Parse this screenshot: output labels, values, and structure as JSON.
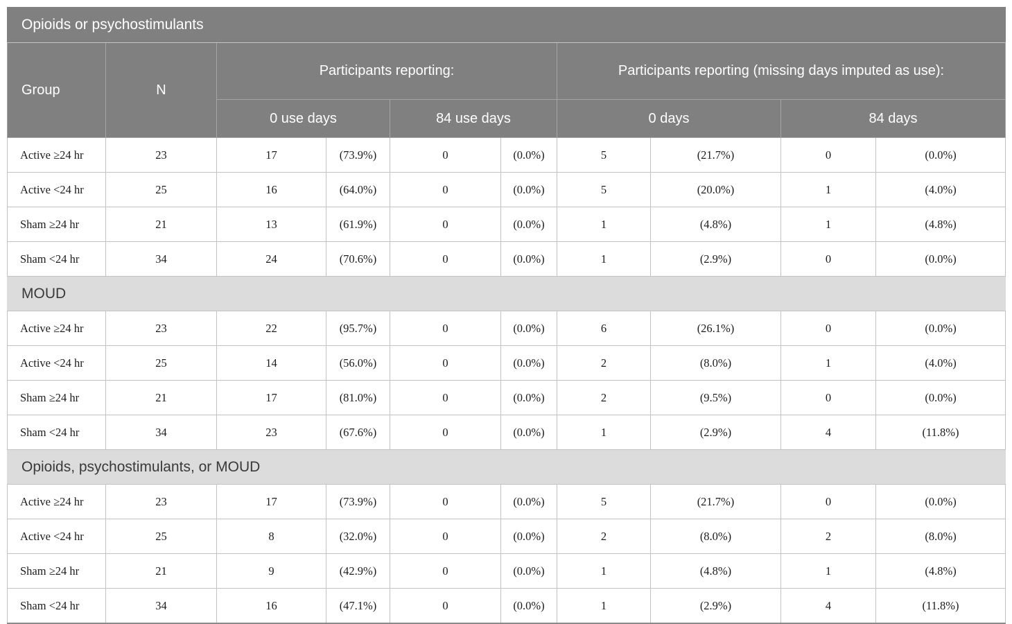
{
  "table": {
    "title": "Opioids or psychostimulants",
    "columns": {
      "group": "Group",
      "n": "N",
      "reporting": "Participants reporting:",
      "reporting_imputed": "Participants reporting (missing days imputed as use):",
      "sub": [
        "0 use days",
        "84 use days",
        "0 days",
        "84 days"
      ]
    },
    "sections": [
      {
        "label": null,
        "rows": [
          {
            "group": "Active ≥24 hr",
            "n": "23",
            "cells": [
              "17",
              "(73.9%)",
              "0",
              "(0.0%)",
              "5",
              "(21.7%)",
              "0",
              "(0.0%)"
            ]
          },
          {
            "group": "Active <24 hr",
            "n": "25",
            "cells": [
              "16",
              "(64.0%)",
              "0",
              "(0.0%)",
              "5",
              "(20.0%)",
              "1",
              "(4.0%)"
            ]
          },
          {
            "group": "Sham ≥24 hr",
            "n": "21",
            "cells": [
              "13",
              "(61.9%)",
              "0",
              "(0.0%)",
              "1",
              "(4.8%)",
              "1",
              "(4.8%)"
            ]
          },
          {
            "group": "Sham <24 hr",
            "n": "34",
            "cells": [
              "24",
              "(70.6%)",
              "0",
              "(0.0%)",
              "1",
              "(2.9%)",
              "0",
              "(0.0%)"
            ]
          }
        ]
      },
      {
        "label": "MOUD",
        "rows": [
          {
            "group": "Active ≥24 hr",
            "n": "23",
            "cells": [
              "22",
              "(95.7%)",
              "0",
              "(0.0%)",
              "6",
              "(26.1%)",
              "0",
              "(0.0%)"
            ]
          },
          {
            "group": "Active <24 hr",
            "n": "25",
            "cells": [
              "14",
              "(56.0%)",
              "0",
              "(0.0%)",
              "2",
              "(8.0%)",
              "1",
              "(4.0%)"
            ]
          },
          {
            "group": "Sham ≥24 hr",
            "n": "21",
            "cells": [
              "17",
              "(81.0%)",
              "0",
              "(0.0%)",
              "2",
              "(9.5%)",
              "0",
              "(0.0%)"
            ]
          },
          {
            "group": "Sham <24 hr",
            "n": "34",
            "cells": [
              "23",
              "(67.6%)",
              "0",
              "(0.0%)",
              "1",
              "(2.9%)",
              "4",
              "(11.8%)"
            ]
          }
        ]
      },
      {
        "label": "Opioids, psychostimulants, or MOUD",
        "rows": [
          {
            "group": "Active ≥24 hr",
            "n": "23",
            "cells": [
              "17",
              "(73.9%)",
              "0",
              "(0.0%)",
              "5",
              "(21.7%)",
              "0",
              "(0.0%)"
            ]
          },
          {
            "group": "Active <24 hr",
            "n": "25",
            "cells": [
              "8",
              "(32.0%)",
              "0",
              "(0.0%)",
              "2",
              "(8.0%)",
              "2",
              "(8.0%)"
            ]
          },
          {
            "group": "Sham ≥24 hr",
            "n": "21",
            "cells": [
              "9",
              "(42.9%)",
              "0",
              "(0.0%)",
              "1",
              "(4.8%)",
              "1",
              "(4.8%)"
            ]
          },
          {
            "group": "Sham <24 hr",
            "n": "34",
            "cells": [
              "16",
              "(47.1%)",
              "0",
              "(0.0%)",
              "1",
              "(2.9%)",
              "4",
              "(11.8%)"
            ]
          }
        ]
      }
    ]
  },
  "colors": {
    "header_bg": "#808080",
    "header_text": "#ffffff",
    "section_band_bg": "#dcdcdc",
    "section_band_text": "#3a3a3a",
    "cell_border": "#c2c2c2",
    "data_text": "#1c1c1c"
  }
}
